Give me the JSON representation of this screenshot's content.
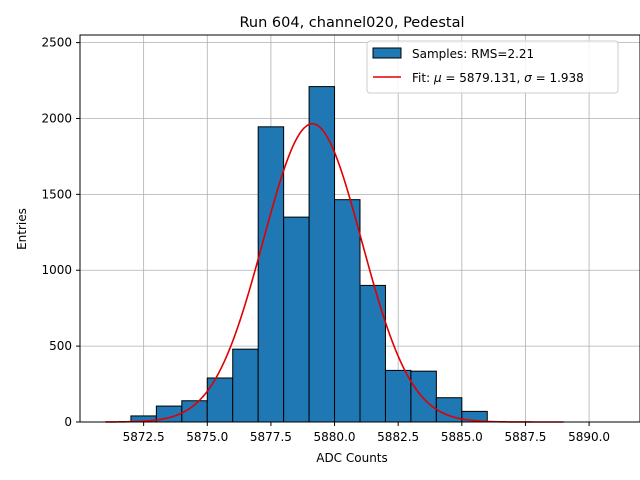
{
  "chart_data": {
    "type": "bar",
    "title": "Run 604, channel020, Pedestal",
    "xlabel": "ADC Counts",
    "ylabel": "Entries",
    "xlim": [
      5870.0,
      5892.0
    ],
    "ylim": [
      0,
      2550
    ],
    "xticks": [
      5872.5,
      5875.0,
      5877.5,
      5880.0,
      5882.5,
      5885.0,
      5887.5,
      5890.0
    ],
    "xtick_labels": [
      "5872.5",
      "5875.0",
      "5877.5",
      "5880.0",
      "5882.5",
      "5885.0",
      "5887.5",
      "5890.0"
    ],
    "yticks": [
      0,
      500,
      1000,
      1500,
      2000,
      2500
    ],
    "ytick_labels": [
      "0",
      "500",
      "1000",
      "1500",
      "2000",
      "2500"
    ],
    "grid": true,
    "legend_position": "top-right",
    "series": [
      {
        "name": "Samples: RMS=2.21",
        "kind": "histogram",
        "color": "#1f77b4",
        "edge_color": "#000000",
        "bin_edges": [
          5871,
          5872,
          5873,
          5874,
          5875,
          5876,
          5877,
          5878,
          5879,
          5880,
          5881,
          5882,
          5883,
          5884,
          5885,
          5886,
          5887,
          5888,
          5889,
          5890,
          5891
        ],
        "values": [
          0,
          40,
          105,
          140,
          290,
          480,
          1945,
          1350,
          2210,
          1465,
          900,
          340,
          335,
          160,
          70,
          0,
          0,
          0,
          0,
          0
        ]
      },
      {
        "name": "Fit: μ = 5879.131, σ = 1.938",
        "name_parts": {
          "prefix": "Fit: ",
          "mu_symbol": "μ",
          "mu_text": " = 5879.131, ",
          "sigma_symbol": "σ",
          "sigma_text": " = 1.938"
        },
        "kind": "gaussian_fit",
        "color": "#e00000",
        "mu": 5879.131,
        "sigma": 1.938,
        "amplitude": 1965,
        "x_range": [
          5871,
          5889
        ]
      }
    ]
  }
}
